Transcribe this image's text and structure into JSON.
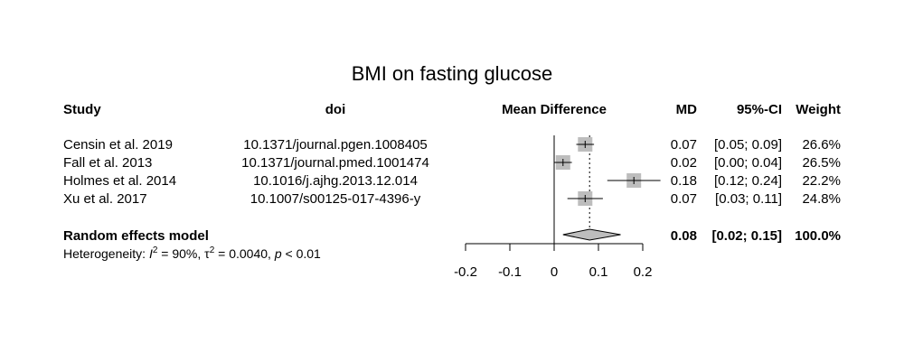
{
  "chart_data": {
    "type": "forest",
    "title": "BMI on fasting glucose",
    "columns": {
      "study": "Study",
      "doi": "doi",
      "effect": "Mean Difference",
      "md": "MD",
      "ci": "95%-CI",
      "weight": "Weight"
    },
    "studies": [
      {
        "study": "Censin et al. 2019",
        "doi": "10.1371/journal.pgen.1008405",
        "md": 0.07,
        "lower": 0.05,
        "upper": 0.09,
        "md_label": "0.07",
        "ci_label": "[0.05; 0.09]",
        "weight_label": "26.6%"
      },
      {
        "study": "Fall et al. 2013",
        "doi": "10.1371/journal.pmed.1001474",
        "md": 0.02,
        "lower": 0.0,
        "upper": 0.04,
        "md_label": "0.02",
        "ci_label": "[0.00; 0.04]",
        "weight_label": "26.5%"
      },
      {
        "study": "Holmes et al. 2014",
        "doi": "10.1016/j.ajhg.2013.12.014",
        "md": 0.18,
        "lower": 0.12,
        "upper": 0.24,
        "md_label": "0.18",
        "ci_label": "[0.12; 0.24]",
        "weight_label": "22.2%"
      },
      {
        "study": "Xu et al. 2017",
        "doi": "10.1007/s00125-017-4396-y",
        "md": 0.07,
        "lower": 0.03,
        "upper": 0.11,
        "md_label": "0.07",
        "ci_label": "[0.03; 0.11]",
        "weight_label": "24.8%"
      }
    ],
    "pooled": {
      "label": "Random effects model",
      "md": 0.08,
      "lower": 0.02,
      "upper": 0.15,
      "md_label": "0.08",
      "ci_label": "[0.02; 0.15]",
      "weight_label": "100.0%"
    },
    "heterogeneity": {
      "prefix": "Heterogeneity: ",
      "i2_symbol": "I",
      "i2_sup": "2",
      "i2_value": " = 90%, ",
      "tau_symbol": "τ",
      "tau_sup": "2",
      "tau_value": " = 0.0040, ",
      "p_symbol": "p",
      "p_value": " < 0.01"
    },
    "x_axis": {
      "ticks": [
        -0.2,
        -0.1,
        0,
        0.1,
        0.2
      ],
      "tick_labels": [
        "-0.2",
        "-0.1",
        "0",
        "0.1",
        "0.2"
      ],
      "xlim": [
        -0.2,
        0.2
      ]
    },
    "colors": {
      "square": "#bdbdbd",
      "diamond": "#bdbdbd",
      "line": "#000000"
    }
  }
}
